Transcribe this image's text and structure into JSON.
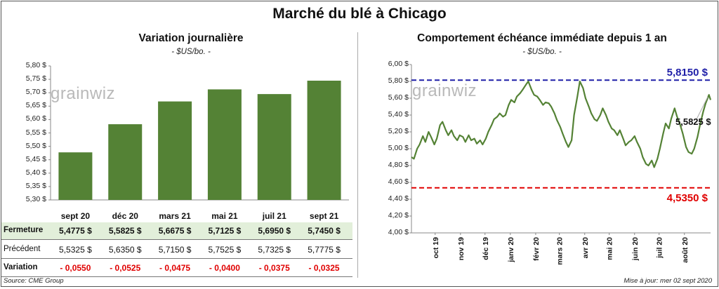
{
  "main_title": "Marché du blé à Chicago",
  "watermark": "grainwiz",
  "chart_data": [
    {
      "type": "bar",
      "title": "Variation journalière",
      "subtitle": "- $US/bo. -",
      "categories": [
        "sept 20",
        "déc 20",
        "mars 21",
        "mai 21",
        "juil 21",
        "sept 21"
      ],
      "values": [
        5.4775,
        5.5825,
        5.6675,
        5.7125,
        5.695,
        5.745
      ],
      "ylim": [
        5.3,
        5.8
      ],
      "yticks": [
        "5,30 $",
        "5,35 $",
        "5,40 $",
        "5,45 $",
        "5,50 $",
        "5,55 $",
        "5,60 $",
        "5,65 $",
        "5,70 $",
        "5,75 $",
        "5,80 $"
      ],
      "bar_color": "#548235"
    },
    {
      "type": "line",
      "title": "Comportement  échéance immédiate depuis 1 an",
      "subtitle": "- $US/bo. -",
      "ylim": [
        4.0,
        6.0
      ],
      "yticks": [
        "4,00 $",
        "4,20 $",
        "4,40 $",
        "4,60 $",
        "4,80 $",
        "5,00 $",
        "5,20 $",
        "5,40 $",
        "5,60 $",
        "5,80 $",
        "6,00 $"
      ],
      "xticks": [
        "oct 19",
        "nov 19",
        "déc 19",
        "janv 20",
        "févr 20",
        "mars 20",
        "avr 20",
        "mai 20",
        "juin 20",
        "juil 20",
        "août 20"
      ],
      "x_start": "2019-09-02",
      "x_end": "2020-09-02",
      "high": 5.815,
      "high_label": "5,8150 $",
      "low": 4.535,
      "low_label": "4,5350 $",
      "current": 5.5825,
      "current_label": "5,5825 $",
      "line_color": "#548235",
      "high_color": "#1f1fa8",
      "low_color": "#e00000",
      "points": [
        [
          "2019-09-02",
          4.9
        ],
        [
          "2019-09-05",
          4.88
        ],
        [
          "2019-09-09",
          5.0
        ],
        [
          "2019-09-12",
          5.05
        ],
        [
          "2019-09-16",
          5.15
        ],
        [
          "2019-09-19",
          5.08
        ],
        [
          "2019-09-23",
          5.2
        ],
        [
          "2019-09-26",
          5.14
        ],
        [
          "2019-09-30",
          5.05
        ],
        [
          "2019-10-03",
          5.12
        ],
        [
          "2019-10-07",
          5.28
        ],
        [
          "2019-10-10",
          5.32
        ],
        [
          "2019-10-14",
          5.22
        ],
        [
          "2019-10-17",
          5.16
        ],
        [
          "2019-10-21",
          5.22
        ],
        [
          "2019-10-24",
          5.15
        ],
        [
          "2019-10-28",
          5.1
        ],
        [
          "2019-10-31",
          5.16
        ],
        [
          "2019-11-04",
          5.14
        ],
        [
          "2019-11-07",
          5.08
        ],
        [
          "2019-11-11",
          5.16
        ],
        [
          "2019-11-14",
          5.1
        ],
        [
          "2019-11-18",
          5.12
        ],
        [
          "2019-11-21",
          5.06
        ],
        [
          "2019-11-25",
          5.1
        ],
        [
          "2019-11-28",
          5.05
        ],
        [
          "2019-12-02",
          5.12
        ],
        [
          "2019-12-05",
          5.2
        ],
        [
          "2019-12-09",
          5.28
        ],
        [
          "2019-12-12",
          5.35
        ],
        [
          "2019-12-16",
          5.38
        ],
        [
          "2019-12-19",
          5.42
        ],
        [
          "2019-12-23",
          5.38
        ],
        [
          "2019-12-26",
          5.4
        ],
        [
          "2019-12-30",
          5.52
        ],
        [
          "2020-01-02",
          5.58
        ],
        [
          "2020-01-06",
          5.55
        ],
        [
          "2020-01-09",
          5.62
        ],
        [
          "2020-01-13",
          5.66
        ],
        [
          "2020-01-16",
          5.7
        ],
        [
          "2020-01-20",
          5.76
        ],
        [
          "2020-01-23",
          5.8
        ],
        [
          "2020-01-27",
          5.7
        ],
        [
          "2020-01-30",
          5.64
        ],
        [
          "2020-02-03",
          5.62
        ],
        [
          "2020-02-06",
          5.58
        ],
        [
          "2020-02-10",
          5.52
        ],
        [
          "2020-02-13",
          5.55
        ],
        [
          "2020-02-17",
          5.54
        ],
        [
          "2020-02-20",
          5.5
        ],
        [
          "2020-02-24",
          5.42
        ],
        [
          "2020-02-27",
          5.34
        ],
        [
          "2020-03-02",
          5.26
        ],
        [
          "2020-03-05",
          5.18
        ],
        [
          "2020-03-09",
          5.08
        ],
        [
          "2020-03-12",
          5.02
        ],
        [
          "2020-03-16",
          5.1
        ],
        [
          "2020-03-19",
          5.4
        ],
        [
          "2020-03-23",
          5.62
        ],
        [
          "2020-03-26",
          5.8
        ],
        [
          "2020-03-30",
          5.72
        ],
        [
          "2020-04-02",
          5.6
        ],
        [
          "2020-04-06",
          5.5
        ],
        [
          "2020-04-09",
          5.42
        ],
        [
          "2020-04-13",
          5.35
        ],
        [
          "2020-04-16",
          5.33
        ],
        [
          "2020-04-20",
          5.4
        ],
        [
          "2020-04-23",
          5.48
        ],
        [
          "2020-04-27",
          5.4
        ],
        [
          "2020-04-30",
          5.32
        ],
        [
          "2020-05-04",
          5.24
        ],
        [
          "2020-05-07",
          5.22
        ],
        [
          "2020-05-11",
          5.16
        ],
        [
          "2020-05-14",
          5.22
        ],
        [
          "2020-05-18",
          5.12
        ],
        [
          "2020-05-21",
          5.04
        ],
        [
          "2020-05-25",
          5.08
        ],
        [
          "2020-05-28",
          5.1
        ],
        [
          "2020-06-01",
          5.15
        ],
        [
          "2020-06-04",
          5.08
        ],
        [
          "2020-06-08",
          5.0
        ],
        [
          "2020-06-11",
          4.9
        ],
        [
          "2020-06-15",
          4.82
        ],
        [
          "2020-06-18",
          4.8
        ],
        [
          "2020-06-22",
          4.86
        ],
        [
          "2020-06-25",
          4.78
        ],
        [
          "2020-06-29",
          4.88
        ],
        [
          "2020-07-02",
          5.0
        ],
        [
          "2020-07-06",
          5.18
        ],
        [
          "2020-07-09",
          5.3
        ],
        [
          "2020-07-13",
          5.24
        ],
        [
          "2020-07-16",
          5.36
        ],
        [
          "2020-07-20",
          5.48
        ],
        [
          "2020-07-23",
          5.38
        ],
        [
          "2020-07-27",
          5.28
        ],
        [
          "2020-07-30",
          5.18
        ],
        [
          "2020-08-03",
          5.02
        ],
        [
          "2020-08-06",
          4.96
        ],
        [
          "2020-08-10",
          4.94
        ],
        [
          "2020-08-13",
          5.0
        ],
        [
          "2020-08-17",
          5.14
        ],
        [
          "2020-08-20",
          5.28
        ],
        [
          "2020-08-24",
          5.44
        ],
        [
          "2020-08-27",
          5.54
        ],
        [
          "2020-08-31",
          5.64
        ],
        [
          "2020-09-02",
          5.58
        ]
      ]
    }
  ],
  "table": {
    "rows": [
      {
        "label": "Fermeture",
        "values": [
          "5,4775  $",
          "5,5825  $",
          "5,6675  $",
          "5,7125  $",
          "5,6950  $",
          "5,7450  $"
        ],
        "bg": "#e2efda",
        "color": "#111111"
      },
      {
        "label": "Précédent",
        "values": [
          "5,5325  $",
          "5,6350  $",
          "5,7150  $",
          "5,7525  $",
          "5,7325  $",
          "5,7775  $"
        ],
        "bg": "#ffffff",
        "color": "#111111"
      },
      {
        "label": "Variation",
        "values": [
          "- 0,0550",
          "- 0,0525",
          "- 0,0475",
          "- 0,0400",
          "- 0,0375",
          "- 0,0325"
        ],
        "bg": "#ffffff",
        "color": "#e00000"
      }
    ]
  },
  "footer": {
    "source": "Source: CME Group",
    "updated": "Mise à jour: mer 02 sept 2020"
  }
}
